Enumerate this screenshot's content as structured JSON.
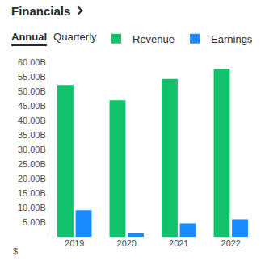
{
  "header": {
    "title": "Financials",
    "tabs": [
      {
        "label": "Annual",
        "selected": true
      },
      {
        "label": "Quarterly",
        "selected": false
      }
    ]
  },
  "chart_data": {
    "type": "bar",
    "categories": [
      "2019",
      "2020",
      "2021",
      "2022"
    ],
    "series": [
      {
        "name": "Revenue",
        "color": "#12c26b",
        "values": [
          52.2,
          46.9,
          54.3,
          57.8
        ]
      },
      {
        "name": "Earnings",
        "color": "#1a8cff",
        "values": [
          9.1,
          1.2,
          4.6,
          6.0
        ]
      }
    ],
    "y_label": "$",
    "ylim": [
      0,
      62
    ],
    "yticks": [
      {
        "value": 5,
        "label": "5.00B"
      },
      {
        "value": 10,
        "label": "10.00B"
      },
      {
        "value": 15,
        "label": "15.00B"
      },
      {
        "value": 20,
        "label": "20.00B"
      },
      {
        "value": 25,
        "label": "25.00B"
      },
      {
        "value": 30,
        "label": "30.00B"
      },
      {
        "value": 35,
        "label": "35.00B"
      },
      {
        "value": 40,
        "label": "40.00B"
      },
      {
        "value": 45,
        "label": "45.00B"
      },
      {
        "value": 50,
        "label": "50.00B"
      },
      {
        "value": 55,
        "label": "55.00B"
      },
      {
        "value": 60,
        "label": "60.00B"
      }
    ],
    "grid": false,
    "legend": "top-right"
  }
}
